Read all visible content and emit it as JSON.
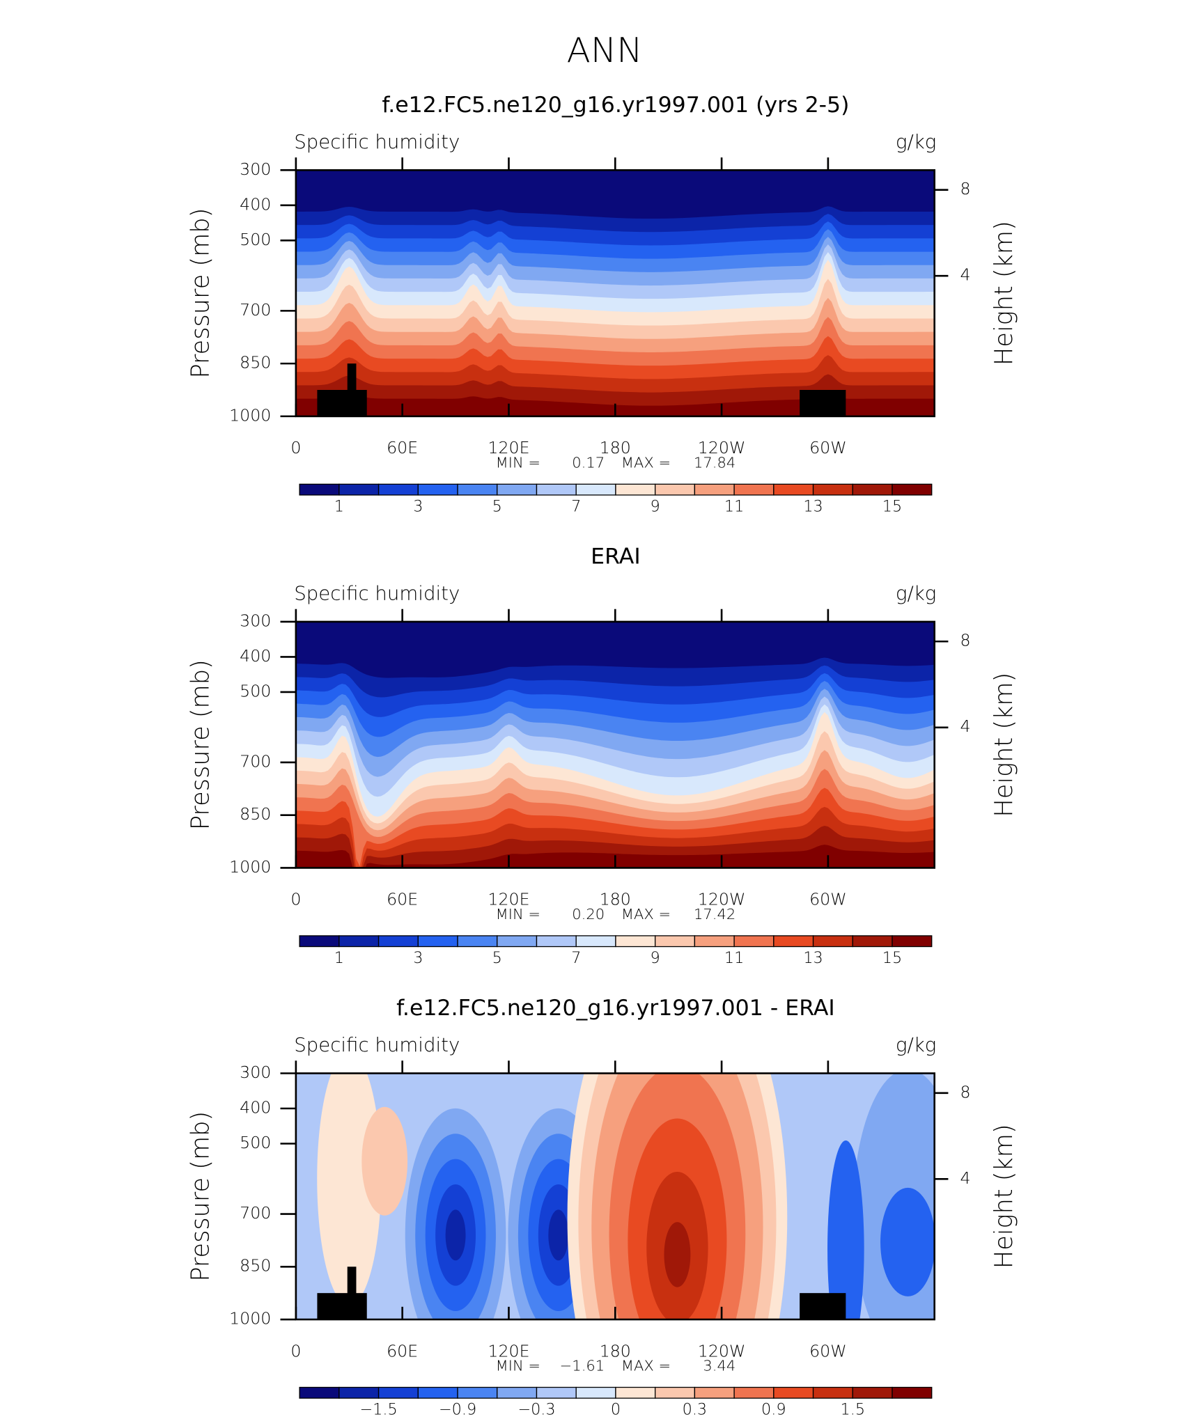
{
  "title": "ANN",
  "chart_data": [
    {
      "type": "contour",
      "title": "f.e12.FC5.ne120_g16.yr1997.001 (yrs 2-5)",
      "left_label": "Specific humidity",
      "right_label": "g/kg",
      "ylabel": "Pressure (mb)",
      "y2label": "Height (km)",
      "ylim": [
        1000,
        300
      ],
      "yticks": [
        300,
        400,
        500,
        700,
        850,
        1000
      ],
      "y2ticks": [
        4,
        8
      ],
      "xlim": [
        0,
        360
      ],
      "xticks": [
        0,
        {
          "value": 60,
          "label": "60E"
        },
        {
          "value": 120,
          "label": "120E"
        },
        180,
        {
          "value": 240,
          "label": "120W"
        },
        {
          "value": 300,
          "label": "60W"
        }
      ],
      "min_label": "MIN =",
      "min": 0.17,
      "max_label": "MAX =",
      "max": 17.84,
      "colorbar": {
        "colors": [
          "#0a0a7a",
          "#0c24a8",
          "#1440d4",
          "#2462f0",
          "#4a84f2",
          "#80a8f2",
          "#b0c8f8",
          "#d8e8fc",
          "#fde6d4",
          "#fbc8ae",
          "#f6a07e",
          "#f07450",
          "#e84a22",
          "#c83010",
          "#a01808",
          "#800000"
        ],
        "labels": [
          1,
          null,
          3,
          null,
          5,
          null,
          7,
          null,
          9,
          null,
          11,
          null,
          13,
          null,
          15
        ]
      }
    },
    {
      "type": "contour",
      "title": "ERAI",
      "left_label": "Specific humidity",
      "right_label": "g/kg",
      "ylabel": "Pressure (mb)",
      "y2label": "Height (km)",
      "ylim": [
        1000,
        300
      ],
      "yticks": [
        300,
        400,
        500,
        700,
        850,
        1000
      ],
      "y2ticks": [
        4,
        8
      ],
      "xlim": [
        0,
        360
      ],
      "xticks": [
        0,
        {
          "value": 60,
          "label": "60E"
        },
        {
          "value": 120,
          "label": "120E"
        },
        180,
        {
          "value": 240,
          "label": "120W"
        },
        {
          "value": 300,
          "label": "60W"
        }
      ],
      "min_label": "MIN =",
      "min": {
        "value": 0.2,
        "label": "0.20"
      },
      "max_label": "MAX =",
      "max": 17.42,
      "colorbar": {
        "colors": [
          "#0a0a7a",
          "#0c24a8",
          "#1440d4",
          "#2462f0",
          "#4a84f2",
          "#80a8f2",
          "#b0c8f8",
          "#d8e8fc",
          "#fde6d4",
          "#fbc8ae",
          "#f6a07e",
          "#f07450",
          "#e84a22",
          "#c83010",
          "#a01808",
          "#800000"
        ],
        "labels": [
          1,
          null,
          3,
          null,
          5,
          null,
          7,
          null,
          9,
          null,
          11,
          null,
          13,
          null,
          15
        ]
      }
    },
    {
      "type": "contour-diff",
      "title": "f.e12.FC5.ne120_g16.yr1997.001 - ERAI",
      "left_label": "Specific humidity",
      "right_label": "g/kg",
      "ylabel": "Pressure (mb)",
      "y2label": "Height (km)",
      "ylim": [
        1000,
        300
      ],
      "yticks": [
        300,
        400,
        500,
        700,
        850,
        1000
      ],
      "y2ticks": [
        4,
        8
      ],
      "xlim": [
        0,
        360
      ],
      "xticks": [
        0,
        {
          "value": 60,
          "label": "60E"
        },
        {
          "value": 120,
          "label": "120E"
        },
        180,
        {
          "value": 240,
          "label": "120W"
        },
        {
          "value": 300,
          "label": "60W"
        }
      ],
      "min_label": "MIN =",
      "min": {
        "value": -1.61,
        "label": "−1.61"
      },
      "max_label": "MAX =",
      "max": 3.44,
      "colorbar": {
        "colors": [
          "#0a0a7a",
          "#0c24a8",
          "#1440d4",
          "#2462f0",
          "#4a84f2",
          "#80a8f2",
          "#b0c8f8",
          "#d8e8fc",
          "#fde6d4",
          "#fbc8ae",
          "#f6a07e",
          "#f07450",
          "#e84a22",
          "#c83010",
          "#a01808",
          "#800000"
        ],
        "labels": [
          null,
          {
            "value": -1.5,
            "label": "−1.5"
          },
          null,
          {
            "value": -0.9,
            "label": "−0.9"
          },
          null,
          {
            "value": -0.3,
            "label": "−0.3"
          },
          null,
          0,
          null,
          0.3,
          null,
          0.9,
          null,
          1.5,
          null
        ]
      }
    }
  ]
}
